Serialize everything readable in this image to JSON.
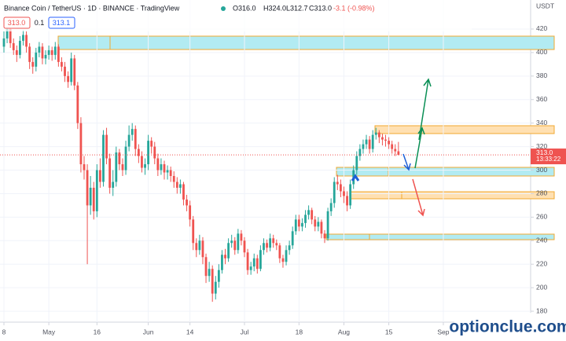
{
  "chart_data": {
    "type": "candlestick",
    "title": "Binance Coin / TetherUS · 1D · BINANCE · TradingView",
    "header_values": [
      "O316.0",
      "H324.0",
      "L312.7",
      "C313.0",
      "-3.1 (-0.98%)"
    ],
    "badges": [
      "313.0",
      "0.1",
      "313.1"
    ],
    "currency": "USDT",
    "last_price_label": "313.0",
    "countdown": "13:33:22",
    "watermark": "optionclue.com",
    "up_color": "#26a69a",
    "down_color": "#ef5350",
    "open": [
      405,
      412,
      420,
      408,
      402,
      398,
      410,
      415,
      405,
      392,
      388,
      400,
      405,
      395,
      398,
      402,
      398,
      405,
      392,
      388,
      380,
      375,
      395,
      372,
      340,
      305,
      300,
      270,
      285,
      265,
      300,
      290,
      330,
      310,
      285,
      290,
      315,
      305,
      300,
      320,
      330,
      335,
      318,
      312,
      302,
      305,
      325,
      320,
      310,
      300,
      305,
      298,
      300,
      295,
      290,
      285,
      288,
      275,
      270,
      258,
      238,
      232,
      240,
      226,
      210,
      216,
      195,
      205,
      215,
      228,
      225,
      238,
      240,
      232,
      246,
      240,
      230,
      215,
      218,
      225,
      216,
      232,
      238,
      234,
      242,
      238,
      236,
      225,
      222,
      232,
      236,
      248,
      258,
      252,
      255,
      262,
      266,
      258,
      252,
      256,
      246,
      242,
      265,
      272,
      290,
      288,
      282,
      278,
      270,
      288,
      300,
      312,
      318,
      322,
      326,
      318,
      330,
      332,
      328,
      326,
      325,
      322,
      318,
      316.0
    ],
    "high": [
      418,
      424,
      422,
      412,
      406,
      414,
      419,
      418,
      408,
      396,
      404,
      409,
      408,
      402,
      406,
      405,
      409,
      407,
      396,
      392,
      384,
      400,
      398,
      375,
      345,
      312,
      305,
      295,
      290,
      305,
      310,
      334,
      336,
      314,
      300,
      320,
      318,
      310,
      325,
      338,
      340,
      338,
      322,
      316,
      310,
      330,
      328,
      324,
      314,
      310,
      308,
      304,
      303,
      299,
      294,
      292,
      290,
      279,
      274,
      261,
      242,
      245,
      243,
      229,
      222,
      219,
      210,
      220,
      232,
      233,
      242,
      245,
      243,
      250,
      249,
      243,
      233,
      222,
      229,
      228,
      236,
      242,
      241,
      246,
      245,
      241,
      238,
      228,
      236,
      240,
      252,
      262,
      262,
      259,
      266,
      270,
      268,
      261,
      260,
      258,
      249,
      268,
      276,
      294,
      296,
      292,
      286,
      282,
      292,
      304,
      316,
      322,
      326,
      330,
      329,
      334,
      336,
      334,
      331,
      330,
      328,
      325,
      322,
      324.0
    ],
    "low": [
      400,
      408,
      404,
      398,
      392,
      395,
      406,
      400,
      386,
      382,
      384,
      396,
      390,
      390,
      394,
      393,
      394,
      388,
      384,
      375,
      370,
      372,
      368,
      335,
      298,
      292,
      220,
      262,
      258,
      260,
      285,
      286,
      305,
      280,
      278,
      286,
      300,
      295,
      296,
      316,
      325,
      312,
      306,
      298,
      296,
      300,
      314,
      305,
      295,
      296,
      292,
      292,
      290,
      285,
      280,
      280,
      270,
      265,
      252,
      232,
      226,
      228,
      220,
      204,
      205,
      188,
      190,
      200,
      212,
      220,
      222,
      234,
      228,
      229,
      236,
      226,
      211,
      211,
      214,
      212,
      214,
      228,
      230,
      231,
      234,
      232,
      221,
      217,
      219,
      228,
      233,
      245,
      248,
      248,
      251,
      258,
      254,
      248,
      248,
      242,
      238,
      240,
      261,
      268,
      283,
      277,
      272,
      265,
      267,
      284,
      296,
      308,
      314,
      318,
      314,
      315,
      326,
      323,
      321,
      320,
      318,
      314,
      312,
      312.7
    ],
    "close": [
      412,
      420,
      408,
      402,
      398,
      410,
      415,
      405,
      392,
      388,
      400,
      405,
      395,
      398,
      402,
      398,
      405,
      392,
      388,
      380,
      375,
      395,
      372,
      340,
      305,
      300,
      270,
      285,
      265,
      300,
      290,
      330,
      310,
      285,
      290,
      315,
      305,
      300,
      320,
      330,
      335,
      318,
      312,
      302,
      305,
      325,
      320,
      310,
      300,
      305,
      298,
      300,
      295,
      290,
      285,
      288,
      275,
      270,
      258,
      238,
      232,
      240,
      226,
      210,
      216,
      195,
      205,
      215,
      228,
      225,
      238,
      240,
      232,
      246,
      240,
      230,
      215,
      218,
      225,
      216,
      232,
      238,
      234,
      242,
      238,
      236,
      225,
      222,
      232,
      236,
      248,
      258,
      252,
      255,
      262,
      266,
      258,
      252,
      256,
      246,
      242,
      265,
      272,
      290,
      288,
      282,
      278,
      270,
      288,
      300,
      312,
      318,
      322,
      326,
      318,
      330,
      332,
      328,
      326,
      325,
      322,
      318,
      316,
      313.0
    ],
    "xticks": [
      {
        "value": 0,
        "label": "8"
      },
      {
        "value": 14,
        "label": "May"
      },
      {
        "value": 29,
        "label": "16"
      },
      {
        "value": 45,
        "label": "Jun"
      },
      {
        "value": 58,
        "label": "14"
      },
      {
        "value": 75,
        "label": "Jul"
      },
      {
        "value": 92,
        "label": "18"
      },
      {
        "value": 106,
        "label": "Aug"
      },
      {
        "value": 120,
        "label": "15"
      },
      {
        "value": 137,
        "label": "Sep"
      }
    ],
    "ylim": [
      170.7,
      444.7
    ],
    "yticks": [
      180,
      200,
      220,
      240,
      260,
      280,
      300,
      320,
      340,
      360,
      380,
      400,
      420
    ]
  }
}
